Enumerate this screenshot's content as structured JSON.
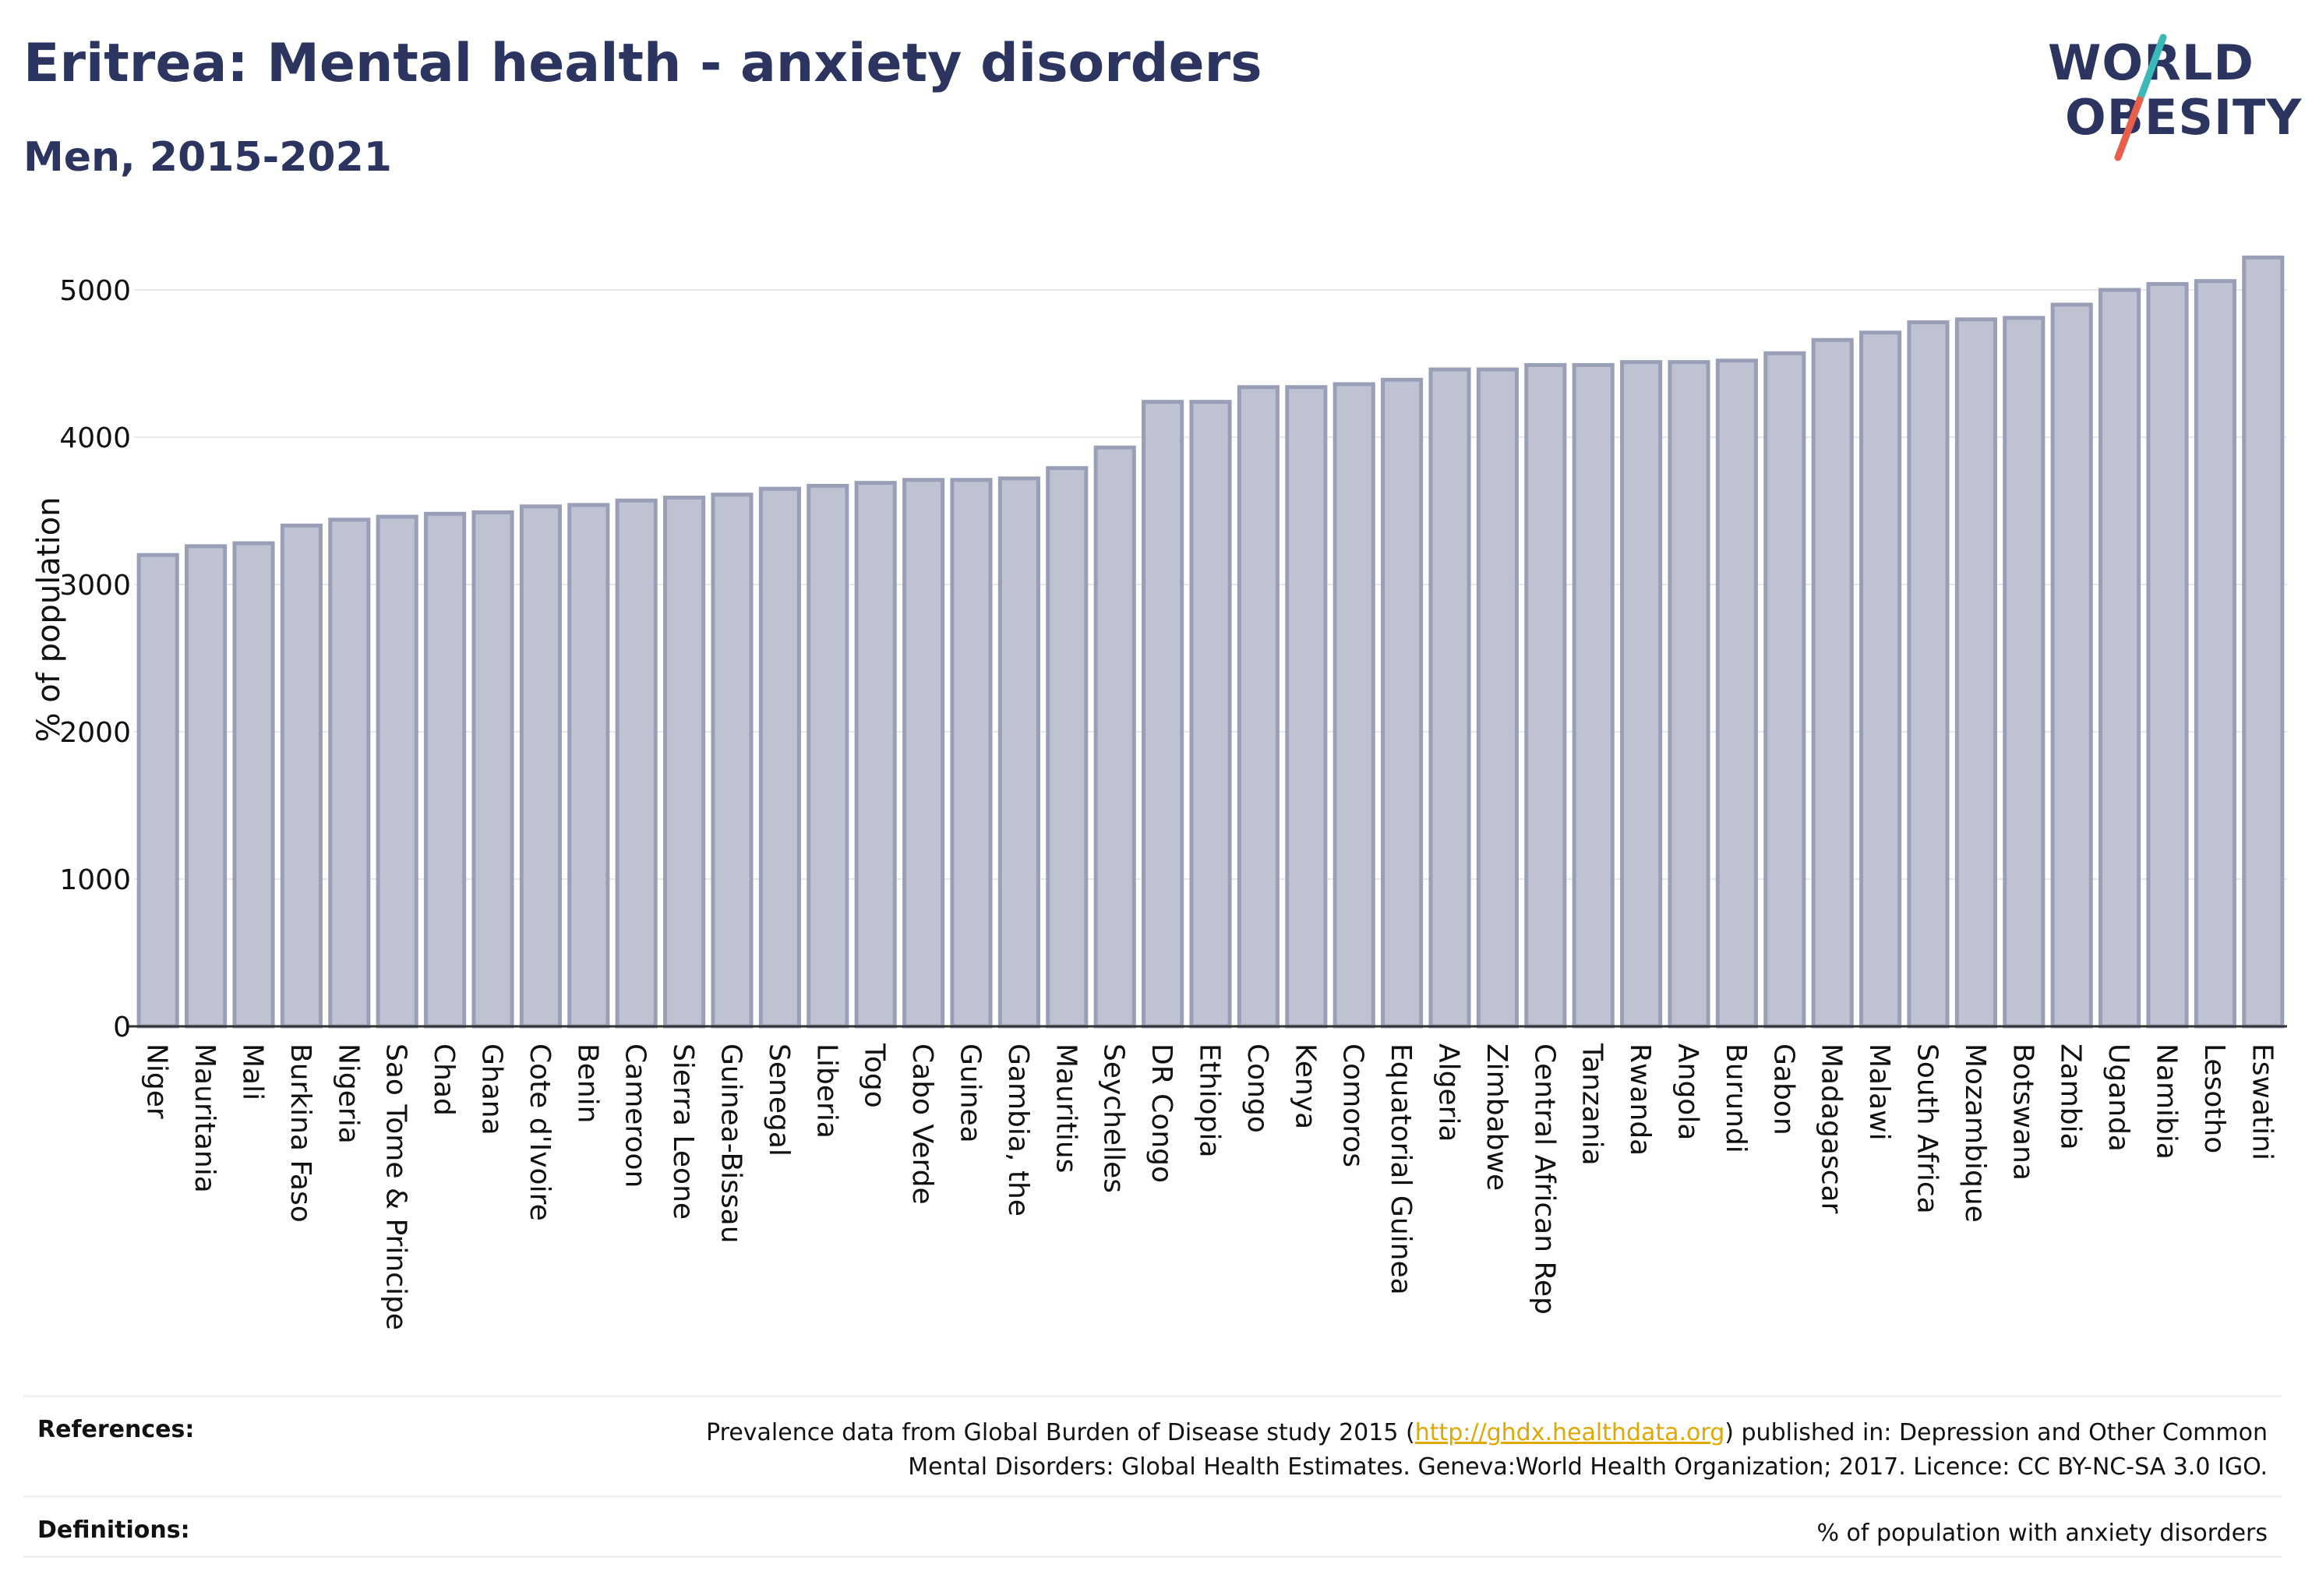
{
  "header": {
    "title": "Eritrea: Mental health - anxiety disorders",
    "subtitle": "Men, 2015-2021"
  },
  "logo": {
    "line1": "WORLD",
    "line2": "OBESITY",
    "accent_teal": "#3bb8b8",
    "accent_red": "#e8604c"
  },
  "colors": {
    "bar_fill": "#bfc2d0",
    "bar_stroke": "#9a9fb8",
    "text": "#2b3560",
    "grid": "#e6e8ee"
  },
  "chart_data": {
    "type": "bar",
    "ylabel": "% of population",
    "xlabel": "",
    "ylim": [
      0,
      5300
    ],
    "yticks": [
      0,
      1000,
      2000,
      3000,
      4000,
      5000
    ],
    "grid": true,
    "categories": [
      "Niger",
      "Mauritania",
      "Mali",
      "Burkina Faso",
      "Nigeria",
      "Sao Tome & Principe",
      "Chad",
      "Ghana",
      "Cote d'Ivoire",
      "Benin",
      "Cameroon",
      "Sierra Leone",
      "Guinea-Bissau",
      "Senegal",
      "Liberia",
      "Togo",
      "Cabo Verde",
      "Guinea",
      "Gambia, the",
      "Mauritius",
      "Seychelles",
      "DR Congo",
      "Ethiopia",
      "Congo",
      "Kenya",
      "Comoros",
      "Equatorial Guinea",
      "Algeria",
      "Zimbabwe",
      "Central African Rep",
      "Tanzania",
      "Rwanda",
      "Angola",
      "Burundi",
      "Gabon",
      "Madagascar",
      "Malawi",
      "South Africa",
      "Mozambique",
      "Botswana",
      "Zambia",
      "Uganda",
      "Namibia",
      "Lesotho",
      "Eswatini"
    ],
    "values": [
      3200,
      3260,
      3280,
      3400,
      3440,
      3460,
      3480,
      3490,
      3530,
      3540,
      3570,
      3590,
      3610,
      3650,
      3670,
      3690,
      3710,
      3710,
      3720,
      3790,
      3930,
      4240,
      4240,
      4340,
      4340,
      4360,
      4390,
      4460,
      4460,
      4490,
      4490,
      4510,
      4510,
      4520,
      4570,
      4660,
      4710,
      4780,
      4800,
      4810,
      4900,
      5000,
      5040,
      5060,
      5220
    ]
  },
  "references": {
    "label": "References:",
    "text_before": "Prevalence data from Global Burden of Disease study 2015 (",
    "link": "http://ghdx.healthdata.org",
    "text_after": ") published in: Depression and Other Common",
    "line2": "Mental Disorders: Global Health Estimates. Geneva:World Health Organization; 2017. Licence: CC BY-NC-SA 3.0 IGO."
  },
  "definitions": {
    "label": "Definitions:",
    "text": "% of population with anxiety disorders"
  }
}
